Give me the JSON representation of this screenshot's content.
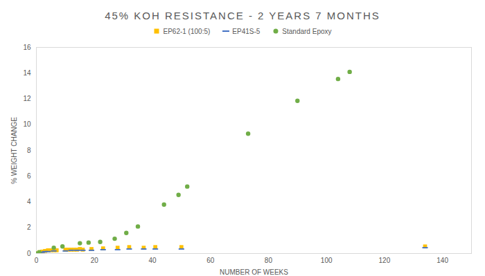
{
  "chart_data": {
    "type": "scatter",
    "title": "45% KOH RESISTANCE - 2 YEARS 7 MONTHS",
    "x_label": "NUMBER OF WEEKS",
    "y_label": "% WEIGHT CHANGE",
    "xlim": [
      0,
      150
    ],
    "xticks": [
      0,
      20,
      40,
      60,
      80,
      100,
      120,
      140
    ],
    "ylim": [
      0,
      16
    ],
    "yticks": [
      0,
      2,
      4,
      6,
      8,
      10,
      12,
      14,
      16
    ],
    "grid": false,
    "legend": "top",
    "series": [
      {
        "name": "EP62-1 (100:5)",
        "color": "#ffc000",
        "marker": "square",
        "x": [
          0,
          1,
          2,
          3,
          4,
          5,
          6,
          7,
          10,
          11,
          12,
          13,
          14,
          15,
          16,
          19,
          23,
          28,
          32,
          37,
          41,
          50,
          134
        ],
        "values": [
          0,
          0.1,
          0.15,
          0.2,
          0.25,
          0.25,
          0.25,
          0.25,
          0.3,
          0.3,
          0.3,
          0.3,
          0.3,
          0.35,
          0.3,
          0.35,
          0.4,
          0.45,
          0.5,
          0.45,
          0.5,
          0.5,
          0.55
        ]
      },
      {
        "name": "EP41S-5",
        "color": "#4472c4",
        "marker": "dash",
        "x": [
          0,
          1,
          2,
          3,
          4,
          6,
          10,
          12,
          14,
          16,
          19,
          23,
          28,
          32,
          37,
          41,
          50,
          134
        ],
        "values": [
          0,
          0.05,
          0.1,
          0.15,
          0.15,
          0.2,
          0.2,
          0.25,
          0.25,
          0.25,
          0.25,
          0.3,
          0.3,
          0.35,
          0.35,
          0.35,
          0.35,
          0.45
        ]
      },
      {
        "name": "Standard Epoxy",
        "color": "#70ad47",
        "marker": "circle",
        "x": [
          0,
          1,
          6,
          9,
          15,
          18,
          22,
          27,
          31,
          35,
          44,
          49,
          52,
          73,
          90,
          104,
          108
        ],
        "values": [
          0,
          0.1,
          0.45,
          0.55,
          0.8,
          0.85,
          0.9,
          1.15,
          1.6,
          2.1,
          3.8,
          4.55,
          5.2,
          9.3,
          11.85,
          13.55,
          14.1
        ]
      }
    ]
  }
}
